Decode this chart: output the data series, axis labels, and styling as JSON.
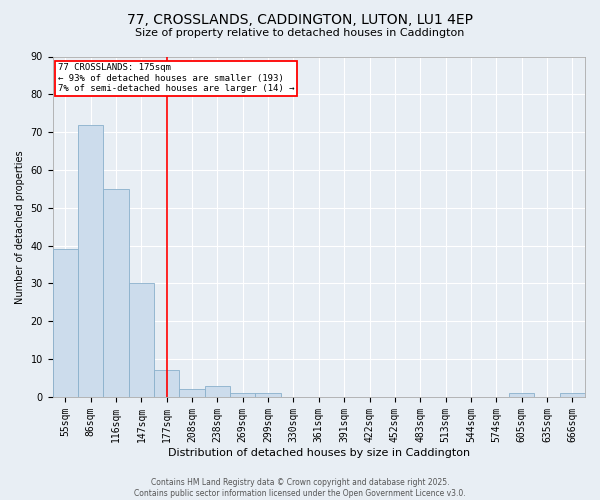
{
  "title_line1": "77, CROSSLANDS, CADDINGTON, LUTON, LU1 4EP",
  "title_line2": "Size of property relative to detached houses in Caddington",
  "xlabel": "Distribution of detached houses by size in Caddington",
  "ylabel": "Number of detached properties",
  "footer_line1": "Contains HM Land Registry data © Crown copyright and database right 2025.",
  "footer_line2": "Contains public sector information licensed under the Open Government Licence v3.0.",
  "bins": [
    "55sqm",
    "86sqm",
    "116sqm",
    "147sqm",
    "177sqm",
    "208sqm",
    "238sqm",
    "269sqm",
    "299sqm",
    "330sqm",
    "361sqm",
    "391sqm",
    "422sqm",
    "452sqm",
    "483sqm",
    "513sqm",
    "544sqm",
    "574sqm",
    "605sqm",
    "635sqm",
    "666sqm"
  ],
  "values": [
    39,
    72,
    55,
    30,
    7,
    2,
    3,
    1,
    1,
    0,
    0,
    0,
    0,
    0,
    0,
    0,
    0,
    0,
    1,
    0,
    1
  ],
  "bar_color": "#ccdcec",
  "bar_edge_color": "#8ab0cc",
  "red_line_index": 4,
  "annotation_title": "77 CROSSLANDS: 175sqm",
  "annotation_line1": "← 93% of detached houses are smaller (193)",
  "annotation_line2": "7% of semi-detached houses are larger (14) →",
  "ylim": [
    0,
    90
  ],
  "yticks": [
    0,
    10,
    20,
    30,
    40,
    50,
    60,
    70,
    80,
    90
  ],
  "background_color": "#e8eef4",
  "plot_background": "#e8eef4",
  "grid_color": "#ffffff",
  "title1_fontsize": 10,
  "title2_fontsize": 8,
  "xlabel_fontsize": 8,
  "ylabel_fontsize": 7,
  "tick_fontsize": 7,
  "footer_fontsize": 5.5
}
